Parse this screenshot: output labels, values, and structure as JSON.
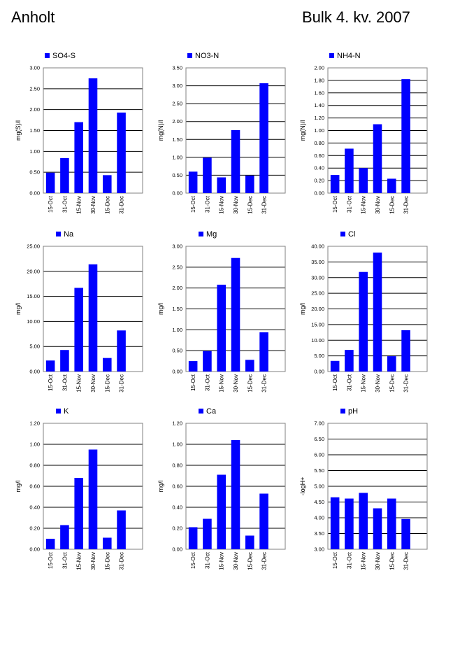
{
  "header": {
    "station": "Anholt",
    "title": "Bulk  4. kv. 2007"
  },
  "colors": {
    "bar": "#0000ff",
    "grid": "#000000"
  },
  "chart_data": [
    {
      "type": "bar",
      "legend": "SO4-S",
      "ylabel": "mg(S)/l",
      "categories": [
        "15-Oct",
        "31-Oct",
        "15-Nov",
        "30-Nov",
        "15-Dec",
        "31-Dec"
      ],
      "values": [
        0.49,
        0.84,
        1.7,
        2.75,
        0.43,
        1.93
      ],
      "ylim": [
        0,
        3.0
      ],
      "yticks": [
        "0.00",
        "0.50",
        "1.00",
        "1.50",
        "2.00",
        "2.50",
        "3.00"
      ]
    },
    {
      "type": "bar",
      "legend": "NO3-N",
      "ylabel": "mg(N)/l",
      "categories": [
        "15-Oct",
        "31-Oct",
        "15-Nov",
        "30-Nov",
        "15-Dec",
        "31-Dec"
      ],
      "values": [
        0.6,
        0.99,
        0.44,
        1.76,
        0.49,
        3.07
      ],
      "ylim": [
        0,
        3.5
      ],
      "yticks": [
        "0.00",
        "0.50",
        "1.00",
        "1.50",
        "2.00",
        "2.50",
        "3.00",
        "3.50"
      ]
    },
    {
      "type": "bar",
      "legend": "NH4-N",
      "ylabel": "mg(N)/l",
      "categories": [
        "15-Oct",
        "31-Oct",
        "15-Nov",
        "30-Nov",
        "15-Dec",
        "31-Dec"
      ],
      "values": [
        0.29,
        0.71,
        0.4,
        1.1,
        0.23,
        1.82
      ],
      "ylim": [
        0,
        2.0
      ],
      "yticks": [
        "0.00",
        "0.20",
        "0.40",
        "0.60",
        "0.80",
        "1.00",
        "1.20",
        "1.40",
        "1.60",
        "1.80",
        "2.00"
      ]
    },
    {
      "type": "bar",
      "legend": "Na",
      "ylabel": "mg/l",
      "categories": [
        "15-Oct",
        "31-Oct",
        "15-Nov",
        "30-Nov",
        "15-Dec",
        "31-Dec"
      ],
      "values": [
        2.2,
        4.3,
        16.7,
        21.4,
        2.7,
        8.2
      ],
      "ylim": [
        0,
        25
      ],
      "yticks": [
        "0.00",
        "5.00",
        "10.00",
        "15.00",
        "20.00",
        "25.00"
      ]
    },
    {
      "type": "bar",
      "legend": "Mg",
      "ylabel": "mg/l",
      "categories": [
        "15-Oct",
        "31-Oct",
        "15-Nov",
        "30-Nov",
        "15-Dec",
        "31-Dec"
      ],
      "values": [
        0.25,
        0.49,
        2.08,
        2.72,
        0.28,
        0.94
      ],
      "ylim": [
        0,
        3.0
      ],
      "yticks": [
        "0.00",
        "0.50",
        "1.00",
        "1.50",
        "2.00",
        "2.50",
        "3.00"
      ]
    },
    {
      "type": "bar",
      "legend": "Cl",
      "ylabel": "mg/l",
      "categories": [
        "15-Oct",
        "31-Oct",
        "15-Nov",
        "30-Nov",
        "15-Dec",
        "31-Dec"
      ],
      "values": [
        3.4,
        6.9,
        31.8,
        38.0,
        4.9,
        13.2
      ],
      "ylim": [
        0,
        40
      ],
      "yticks": [
        "0.00",
        "5.00",
        "10.00",
        "15.00",
        "20.00",
        "25.00",
        "30.00",
        "35.00",
        "40.00"
      ]
    },
    {
      "type": "bar",
      "legend": "K",
      "ylabel": "mg/l",
      "categories": [
        "15-Oct",
        "31-Oct",
        "15-Nov",
        "30-Nov",
        "15-Dec",
        "31-Dec"
      ],
      "values": [
        0.1,
        0.23,
        0.68,
        0.95,
        0.11,
        0.37
      ],
      "ylim": [
        0,
        1.2
      ],
      "yticks": [
        "0.00",
        "0.20",
        "0.40",
        "0.60",
        "0.80",
        "1.00",
        "1.20"
      ]
    },
    {
      "type": "bar",
      "legend": "Ca",
      "ylabel": "mg/l",
      "categories": [
        "15-Oct",
        "31-Oct",
        "15-Nov",
        "30-Nov",
        "15-Dec",
        "31-Dec"
      ],
      "values": [
        0.21,
        0.29,
        0.71,
        1.04,
        0.13,
        0.53
      ],
      "ylim": [
        0,
        1.2
      ],
      "yticks": [
        "0.00",
        "0.20",
        "0.40",
        "0.60",
        "0.80",
        "1.00",
        "1.20"
      ]
    },
    {
      "type": "bar",
      "legend": "pH",
      "ylabel": "-logH+",
      "categories": [
        "15-Oct",
        "31-Oct",
        "15-Nov",
        "30-Nov",
        "15-Dec",
        "31-Dec"
      ],
      "values": [
        4.65,
        4.61,
        4.79,
        4.3,
        4.61,
        3.96
      ],
      "ylim": [
        3.0,
        7.0
      ],
      "yticks": [
        "3.00",
        "3.50",
        "4.00",
        "4.50",
        "5.00",
        "5.50",
        "6.00",
        "6.50",
        "7.00"
      ]
    }
  ]
}
